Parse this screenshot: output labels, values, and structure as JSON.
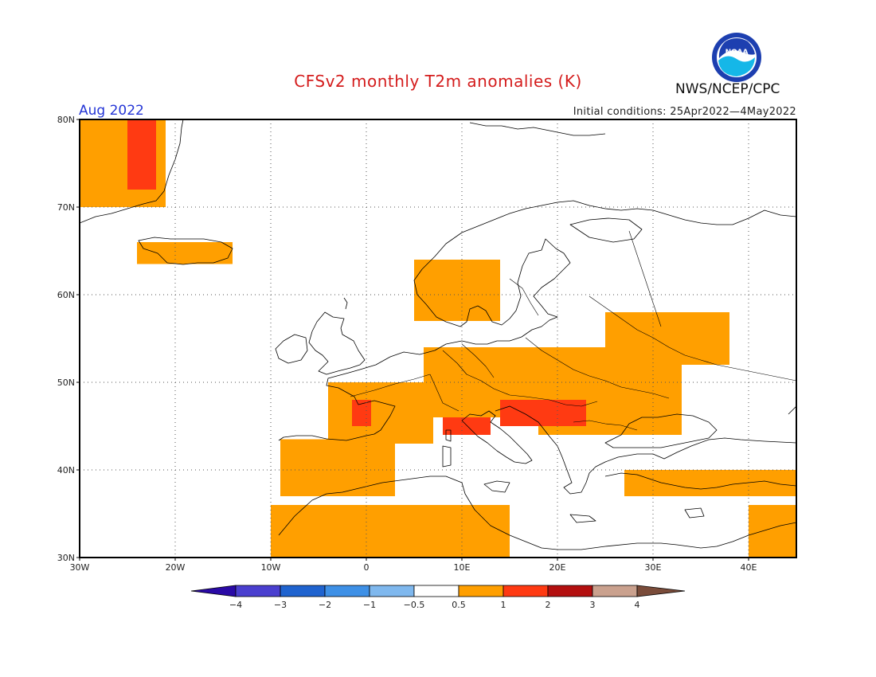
{
  "title": "CFSv2 monthly T2m anomalies (K)",
  "organization": "NWS/NCEP/CPC",
  "logo_text": "NOAA",
  "forecast_month": "Aug 2022",
  "initial_conditions": "Initial conditions: 25Apr2022—4May2022",
  "axes": {
    "lat_labels": [
      "80N",
      "70N",
      "60N",
      "50N",
      "40N",
      "30N"
    ],
    "lon_labels": [
      "30W",
      "20W",
      "10W",
      "0",
      "10E",
      "20E",
      "30E",
      "40E"
    ],
    "lat_range": [
      30,
      80
    ],
    "lon_range": [
      -30,
      45
    ],
    "grid": "dotted"
  },
  "colorbar": {
    "tick_labels": [
      "−4",
      "−3",
      "−2",
      "−1",
      "−0.5",
      "0.5",
      "1",
      "2",
      "3",
      "4"
    ],
    "colors": [
      "#2a0aa6",
      "#4a3fcf",
      "#1f63cf",
      "#3e90e6",
      "#7fb8ee",
      "#ffffff",
      "#ff9f00",
      "#ff3a12",
      "#b30f0f",
      "#caa18e",
      "#7a4c3a"
    ]
  },
  "anomaly_regions": [
    {
      "name": "Iberia",
      "level": 1,
      "lon": [
        -9,
        3
      ],
      "lat": [
        37,
        43.5
      ]
    },
    {
      "name": "France",
      "level": 1,
      "lon": [
        -4,
        7
      ],
      "lat": [
        43,
        50
      ]
    },
    {
      "name": "Western France hotspot",
      "level": 2,
      "lon": [
        -1.5,
        0.5
      ],
      "lat": [
        45,
        48
      ]
    },
    {
      "name": "Central Europe",
      "level": 1,
      "lon": [
        6,
        24
      ],
      "lat": [
        46,
        54
      ]
    },
    {
      "name": "Eastern Europe",
      "level": 1,
      "lon": [
        18,
        33
      ],
      "lat": [
        44,
        54
      ]
    },
    {
      "name": "Po Valley hotspot",
      "level": 2,
      "lon": [
        8,
        13
      ],
      "lat": [
        44,
        46
      ]
    },
    {
      "name": "Pannonian Basin hotspot",
      "level": 2,
      "lon": [
        14,
        23
      ],
      "lat": [
        45,
        48
      ]
    },
    {
      "name": "North Africa",
      "level": 1,
      "lon": [
        -10,
        15
      ],
      "lat": [
        30,
        36
      ]
    },
    {
      "name": "Turkey",
      "level": 1,
      "lon": [
        27,
        45
      ],
      "lat": [
        37,
        40
      ]
    },
    {
      "name": "Scandinavia west",
      "level": 1,
      "lon": [
        5,
        14
      ],
      "lat": [
        57,
        64
      ]
    },
    {
      "name": "Iceland",
      "level": 1,
      "lon": [
        -24,
        -14
      ],
      "lat": [
        63.5,
        66
      ]
    },
    {
      "name": "Greenland",
      "level": 1,
      "lon": [
        -30,
        -21
      ],
      "lat": [
        70,
        80
      ]
    },
    {
      "name": "Greenland east hotspot",
      "level": 2,
      "lon": [
        -25,
        -22
      ],
      "lat": [
        72,
        80
      ]
    },
    {
      "name": "Western Russia",
      "level": 1,
      "lon": [
        25,
        38
      ],
      "lat": [
        52,
        58
      ]
    },
    {
      "name": "Middle East",
      "level": 1,
      "lon": [
        40,
        45
      ],
      "lat": [
        30,
        36
      ]
    }
  ]
}
